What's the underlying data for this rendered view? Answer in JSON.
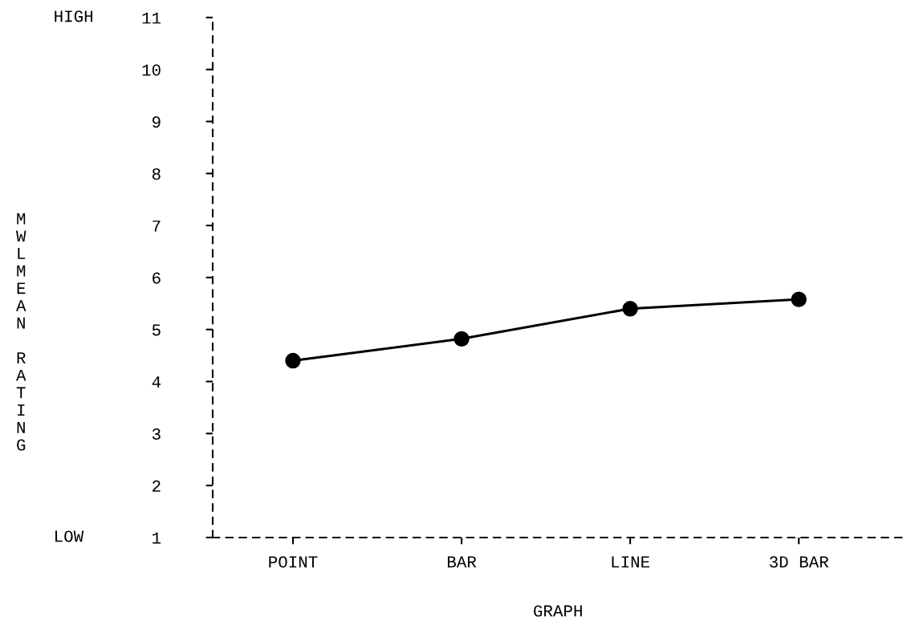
{
  "chart_data": {
    "type": "line",
    "xlabel": "GRAPH",
    "ylabel": "MWLMEAN RATING",
    "categories": [
      "POINT",
      "BAR",
      "LINE",
      "3D BAR"
    ],
    "series": [
      {
        "color": "#000000",
        "values": [
          4.4,
          4.82,
          5.4,
          5.58
        ]
      }
    ],
    "ylim": [
      1,
      11
    ],
    "yticks": [
      1,
      2,
      3,
      4,
      5,
      6,
      7,
      8,
      9,
      10,
      11
    ],
    "annotations": [
      "HIGH",
      "LOW"
    ],
    "marker": "circle",
    "line_style": "solid",
    "grid": false,
    "legend": false
  }
}
